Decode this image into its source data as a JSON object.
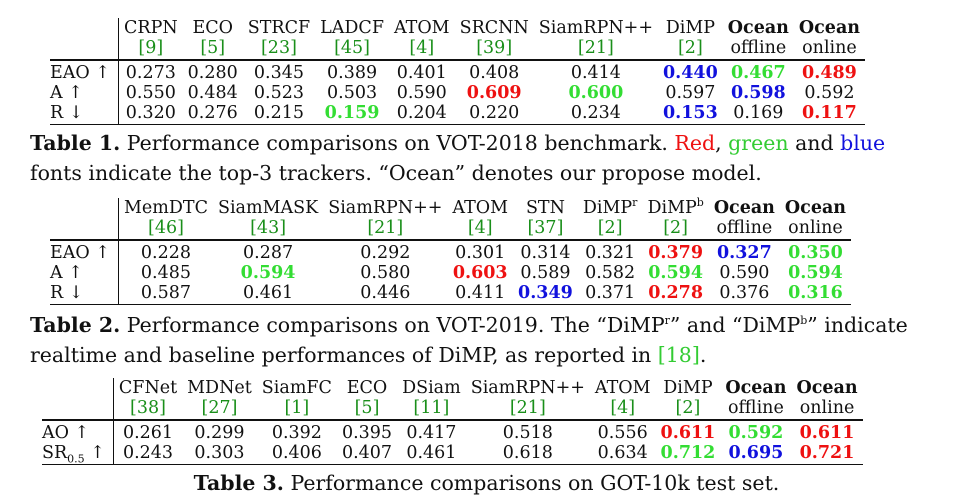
{
  "table1": {
    "headers": [
      {
        "name": "CRPN",
        "cite": "[9]",
        "bold": false
      },
      {
        "name": "ECO",
        "cite": "[5]",
        "bold": false
      },
      {
        "name": "STRCF",
        "cite": "[23]",
        "bold": false
      },
      {
        "name": "LADCF",
        "cite": "[45]",
        "bold": false
      },
      {
        "name": "ATOM",
        "cite": "[4]",
        "bold": false
      },
      {
        "name": "SRCNN",
        "cite": "[39]",
        "bold": false
      },
      {
        "name": "SiamRPN++",
        "cite": "[21]",
        "bold": false
      },
      {
        "name": "DiMP",
        "cite": "[2]",
        "bold": false
      },
      {
        "name": "Ocean",
        "cite": "offline",
        "bold": true
      },
      {
        "name": "Ocean",
        "cite": "online",
        "bold": true
      }
    ],
    "rows": [
      {
        "label": "EAO ↑",
        "cells": [
          {
            "v": "0.273"
          },
          {
            "v": "0.280"
          },
          {
            "v": "0.345"
          },
          {
            "v": "0.389"
          },
          {
            "v": "0.401"
          },
          {
            "v": "0.408"
          },
          {
            "v": "0.414"
          },
          {
            "v": "0.440",
            "c": "blue"
          },
          {
            "v": "0.467",
            "c": "green"
          },
          {
            "v": "0.489",
            "c": "red"
          }
        ]
      },
      {
        "label": "A ↑",
        "cells": [
          {
            "v": "0.550"
          },
          {
            "v": "0.484"
          },
          {
            "v": "0.523"
          },
          {
            "v": "0.503"
          },
          {
            "v": "0.590"
          },
          {
            "v": "0.609",
            "c": "red"
          },
          {
            "v": "0.600",
            "c": "green"
          },
          {
            "v": "0.597"
          },
          {
            "v": "0.598",
            "c": "blue"
          },
          {
            "v": "0.592"
          }
        ]
      },
      {
        "label": "R ↓",
        "cells": [
          {
            "v": "0.320"
          },
          {
            "v": "0.276"
          },
          {
            "v": "0.215"
          },
          {
            "v": "0.159",
            "c": "green"
          },
          {
            "v": "0.204"
          },
          {
            "v": "0.220"
          },
          {
            "v": "0.234"
          },
          {
            "v": "0.153",
            "c": "blue"
          },
          {
            "v": "0.169"
          },
          {
            "v": "0.117",
            "c": "red"
          }
        ]
      }
    ],
    "caption_label": "Table 1.",
    "caption_text_a": " Performance comparisons on VOT-2018 benchmark. ",
    "caption_red": "Red",
    "caption_sep1": ", ",
    "caption_green": "green",
    "caption_and": " and ",
    "caption_blue": "blue",
    "caption_text_b": "fonts indicate the top-3 trackers. “Ocean” denotes our propose model."
  },
  "table2": {
    "headers": [
      {
        "name": "MemDTC",
        "cite": "[46]",
        "bold": false
      },
      {
        "name": "SiamMASK",
        "cite": "[43]",
        "bold": false
      },
      {
        "name": "SiamRPN++",
        "cite": "[21]",
        "bold": false
      },
      {
        "name": "ATOM",
        "cite": "[4]",
        "bold": false
      },
      {
        "name": "STN",
        "cite": "[37]",
        "bold": false
      },
      {
        "name": "DiMP",
        "sup": "r",
        "cite": "[2]",
        "bold": false
      },
      {
        "name": "DiMP",
        "sup": "b",
        "cite": "[2]",
        "bold": false
      },
      {
        "name": "Ocean",
        "cite": "offline",
        "bold": true
      },
      {
        "name": "Ocean",
        "cite": "online",
        "bold": true
      }
    ],
    "rows": [
      {
        "label": "EAO ↑",
        "cells": [
          {
            "v": "0.228"
          },
          {
            "v": "0.287"
          },
          {
            "v": "0.292"
          },
          {
            "v": "0.301"
          },
          {
            "v": "0.314"
          },
          {
            "v": "0.321"
          },
          {
            "v": "0.379",
            "c": "red"
          },
          {
            "v": "0.327",
            "c": "blue"
          },
          {
            "v": "0.350",
            "c": "green"
          }
        ]
      },
      {
        "label": "A ↑",
        "cells": [
          {
            "v": "0.485"
          },
          {
            "v": "0.594",
            "c": "green"
          },
          {
            "v": "0.580"
          },
          {
            "v": "0.603",
            "c": "red"
          },
          {
            "v": "0.589"
          },
          {
            "v": "0.582"
          },
          {
            "v": "0.594",
            "c": "green"
          },
          {
            "v": "0.590"
          },
          {
            "v": "0.594",
            "c": "green"
          }
        ]
      },
      {
        "label": "R ↓",
        "cells": [
          {
            "v": "0.587"
          },
          {
            "v": "0.461"
          },
          {
            "v": "0.446"
          },
          {
            "v": "0.411"
          },
          {
            "v": "0.349",
            "c": "blue"
          },
          {
            "v": "0.371"
          },
          {
            "v": "0.278",
            "c": "red"
          },
          {
            "v": "0.376"
          },
          {
            "v": "0.316",
            "c": "green"
          }
        ]
      }
    ],
    "caption_label": "Table 2.",
    "caption_text_a": " Performance comparisons on VOT-2019. The “DiMP",
    "caption_sup_r": "r",
    "caption_text_mid": "” and “DiMP",
    "caption_sup_b": "b",
    "caption_text_end": "” indicate",
    "caption_text_b1": "realtime and baseline performances of DiMP, as reported in ",
    "caption_cite": "[18]",
    "caption_text_b2": "."
  },
  "table3": {
    "headers": [
      {
        "name": "CFNet",
        "cite": "[38]",
        "bold": false
      },
      {
        "name": "MDNet",
        "cite": "[27]",
        "bold": false
      },
      {
        "name": "SiamFC",
        "cite": "[1]",
        "bold": false
      },
      {
        "name": "ECO",
        "cite": "[5]",
        "bold": false
      },
      {
        "name": "DSiam",
        "cite": "[11]",
        "bold": false
      },
      {
        "name": "SiamRPN++",
        "cite": "[21]",
        "bold": false
      },
      {
        "name": "ATOM",
        "cite": "[4]",
        "bold": false
      },
      {
        "name": "DiMP",
        "cite": "[2]",
        "bold": false
      },
      {
        "name": "Ocean",
        "cite": "offline",
        "bold": true
      },
      {
        "name": "Ocean",
        "cite": "online",
        "bold": true
      }
    ],
    "rows": [
      {
        "label": "AO ↑",
        "cells": [
          {
            "v": "0.261"
          },
          {
            "v": "0.299"
          },
          {
            "v": "0.392"
          },
          {
            "v": "0.395"
          },
          {
            "v": "0.417"
          },
          {
            "v": "0.518"
          },
          {
            "v": "0.556"
          },
          {
            "v": "0.611",
            "c": "red"
          },
          {
            "v": "0.592",
            "c": "green"
          },
          {
            "v": "0.611",
            "c": "red"
          }
        ]
      },
      {
        "label": "SR",
        "label_sub": "0.5",
        "label_suffix": " ↑",
        "cells": [
          {
            "v": "0.243"
          },
          {
            "v": "0.303"
          },
          {
            "v": "0.406"
          },
          {
            "v": "0.407"
          },
          {
            "v": "0.461"
          },
          {
            "v": "0.618"
          },
          {
            "v": "0.634"
          },
          {
            "v": "0.712",
            "c": "green"
          },
          {
            "v": "0.695",
            "c": "blue"
          },
          {
            "v": "0.721",
            "c": "red"
          }
        ]
      }
    ],
    "caption_label": "Table 3.",
    "caption_text": " Performance comparisons on GOT-10k test set."
  }
}
